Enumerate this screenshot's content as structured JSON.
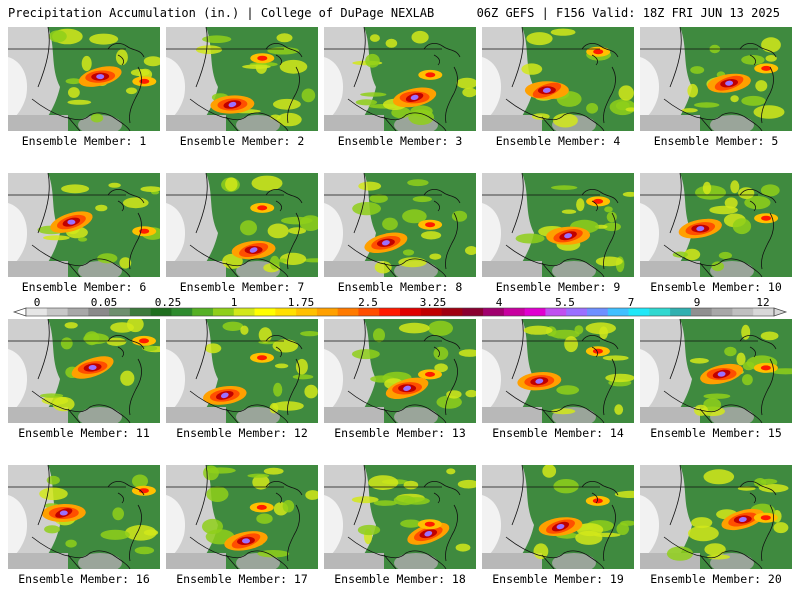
{
  "header": {
    "left": "Precipitation Accumulation (in.) | College of DuPage NEXLAB",
    "right": "06Z GEFS | F156 Valid: 18Z FRI JUN 13 2025"
  },
  "members": [
    {
      "label": "Ensemble Member: 1"
    },
    {
      "label": "Ensemble Member: 2"
    },
    {
      "label": "Ensemble Member: 3"
    },
    {
      "label": "Ensemble Member: 4"
    },
    {
      "label": "Ensemble Member: 5"
    },
    {
      "label": "Ensemble Member: 6"
    },
    {
      "label": "Ensemble Member: 7"
    },
    {
      "label": "Ensemble Member: 8"
    },
    {
      "label": "Ensemble Member: 9"
    },
    {
      "label": "Ensemble Member: 10"
    },
    {
      "label": "Ensemble Member: 11"
    },
    {
      "label": "Ensemble Member: 12"
    },
    {
      "label": "Ensemble Member: 13"
    },
    {
      "label": "Ensemble Member: 14"
    },
    {
      "label": "Ensemble Member: 15"
    },
    {
      "label": "Ensemble Member: 16"
    },
    {
      "label": "Ensemble Member: 17"
    },
    {
      "label": "Ensemble Member: 18"
    },
    {
      "label": "Ensemble Member: 19"
    },
    {
      "label": "Ensemble Member: 20"
    }
  ],
  "colorbar": {
    "tick_labels": [
      "0",
      "0.05",
      "0.25",
      "1",
      "1.75",
      "2.5",
      "3.25",
      "4",
      "5.5",
      "7",
      "9",
      "12"
    ],
    "colors": [
      "#e6e6e6",
      "#c8c8c8",
      "#a8a8a8",
      "#8a8a8a",
      "#6e8f6e",
      "#3d7a3d",
      "#1f6e1f",
      "#2e8b2e",
      "#55b025",
      "#8fcf1a",
      "#d2e81a",
      "#ffff00",
      "#ffe000",
      "#ffc000",
      "#ffa000",
      "#ff7a00",
      "#ff4e00",
      "#ff1a00",
      "#e00000",
      "#c00000",
      "#a00010",
      "#8a0030",
      "#a0006e",
      "#c800a0",
      "#e000d0",
      "#c050f0",
      "#9a70ff",
      "#6e90ff",
      "#40c0ff",
      "#20e8f8",
      "#30d8d0",
      "#30b0b0",
      "#909090",
      "#a8a8a8",
      "#c0c0c0",
      "#d8d8d8"
    ]
  }
}
